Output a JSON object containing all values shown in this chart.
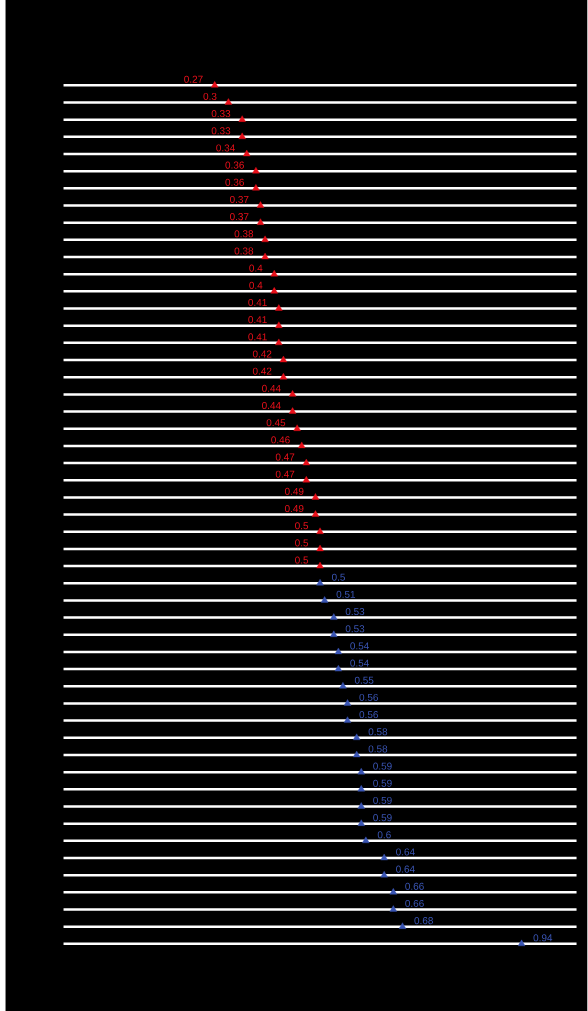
{
  "chart_data": {
    "type": "other",
    "categories": [
      null,
      null,
      null,
      null,
      null,
      null,
      null,
      null,
      null,
      null,
      null,
      null,
      null,
      null,
      null,
      null,
      null,
      null,
      null,
      null,
      null,
      null,
      null,
      null,
      null,
      null,
      null,
      null,
      null,
      null,
      null,
      null,
      null,
      null,
      null,
      null,
      null,
      null,
      null,
      null,
      null,
      null,
      null,
      null,
      null,
      null,
      null,
      null,
      null,
      null,
      null
    ],
    "values": [
      0.27,
      0.3,
      0.33,
      0.33,
      0.34,
      0.36,
      0.36,
      0.37,
      0.37,
      0.38,
      0.38,
      0.4,
      0.4,
      0.41,
      0.41,
      0.41,
      0.42,
      0.42,
      0.44,
      0.44,
      0.45,
      0.46,
      0.47,
      0.47,
      0.49,
      0.49,
      0.5,
      0.5,
      0.5,
      0.5,
      0.51,
      0.53,
      0.53,
      0.54,
      0.54,
      0.55,
      0.56,
      0.56,
      0.58,
      0.58,
      0.59,
      0.59,
      0.59,
      0.59,
      0.6,
      0.64,
      0.64,
      0.66,
      0.66,
      0.68,
      0.94
    ],
    "colors": [
      "#e8101a",
      "#e8101a",
      "#e8101a",
      "#e8101a",
      "#e8101a",
      "#e8101a",
      "#e8101a",
      "#e8101a",
      "#e8101a",
      "#e8101a",
      "#e8101a",
      "#e8101a",
      "#e8101a",
      "#e8101a",
      "#e8101a",
      "#e8101a",
      "#e8101a",
      "#e8101a",
      "#e8101a",
      "#e8101a",
      "#e8101a",
      "#e8101a",
      "#e8101a",
      "#e8101a",
      "#e8101a",
      "#e8101a",
      "#e8101a",
      "#e8101a",
      "#e8101a",
      "#3a55b4",
      "#3a55b4",
      "#3a55b4",
      "#3a55b4",
      "#3a55b4",
      "#3a55b4",
      "#3a55b4",
      "#3a55b4",
      "#3a55b4",
      "#3a55b4",
      "#3a55b4",
      "#3a55b4",
      "#3a55b4",
      "#3a55b4",
      "#3a55b4",
      "#3a55b4",
      "#3a55b4",
      "#3a55b4",
      "#3a55b4",
      "#3a55b4",
      "#3a55b4",
      "#3a55b4"
    ],
    "data_labels": true
  }
}
